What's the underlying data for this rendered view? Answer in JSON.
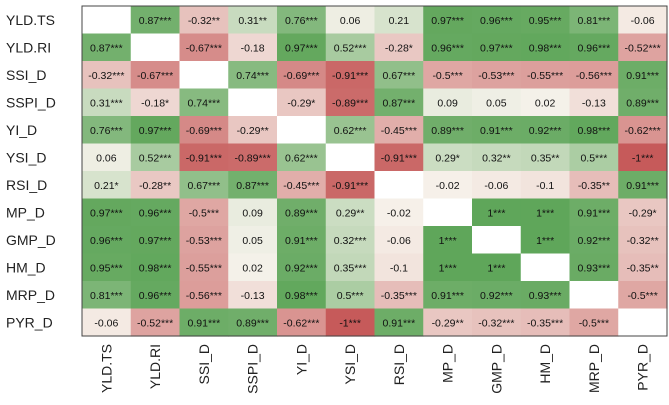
{
  "chart_data": {
    "type": "heatmap",
    "title": "",
    "xlabel": "",
    "ylabel": "",
    "rows": [
      "YLD.TS",
      "YLD.RI",
      "SSI_D",
      "SSPI_D",
      "YI_D",
      "YSI_D",
      "RSI_D",
      "MP_D",
      "GMP_D",
      "HM_D",
      "MRP_D",
      "PYR_D"
    ],
    "columns": [
      "YLD.TS",
      "YLD.RI",
      "SSI_D",
      "SSPI_D",
      "YI_D",
      "YSI_D",
      "RSI_D",
      "MP_D",
      "GMP_D",
      "HM_D",
      "MRP_D",
      "PYR_D"
    ],
    "values": [
      [
        null,
        0.87,
        -0.32,
        0.31,
        0.76,
        0.06,
        0.21,
        0.97,
        0.96,
        0.95,
        0.81,
        -0.06
      ],
      [
        0.87,
        null,
        -0.67,
        -0.18,
        0.97,
        0.52,
        -0.28,
        0.96,
        0.97,
        0.98,
        0.96,
        -0.52
      ],
      [
        -0.32,
        -0.67,
        null,
        0.74,
        -0.69,
        -0.91,
        0.67,
        -0.5,
        -0.53,
        -0.55,
        -0.56,
        0.91
      ],
      [
        0.31,
        -0.18,
        0.74,
        null,
        -0.29,
        -0.89,
        0.87,
        0.09,
        0.05,
        0.02,
        -0.13,
        0.89
      ],
      [
        0.76,
        0.97,
        -0.69,
        -0.29,
        null,
        0.62,
        -0.45,
        0.89,
        0.91,
        0.92,
        0.98,
        -0.62
      ],
      [
        0.06,
        0.52,
        -0.91,
        -0.89,
        0.62,
        null,
        -0.91,
        0.29,
        0.32,
        0.35,
        0.5,
        -1
      ],
      [
        0.21,
        -0.28,
        0.67,
        0.87,
        -0.45,
        -0.91,
        null,
        -0.02,
        -0.06,
        -0.1,
        -0.35,
        0.91
      ],
      [
        0.97,
        0.96,
        -0.5,
        0.09,
        0.89,
        0.29,
        -0.02,
        null,
        1,
        1,
        0.91,
        -0.29
      ],
      [
        0.96,
        0.97,
        -0.53,
        0.05,
        0.91,
        0.32,
        -0.06,
        1,
        null,
        1,
        0.92,
        -0.32
      ],
      [
        0.95,
        0.98,
        -0.55,
        0.02,
        0.92,
        0.35,
        -0.1,
        1,
        1,
        null,
        0.93,
        -0.35
      ],
      [
        0.81,
        0.96,
        -0.56,
        -0.13,
        0.98,
        0.5,
        -0.35,
        0.91,
        0.92,
        0.93,
        null,
        -0.5
      ],
      [
        -0.06,
        -0.52,
        0.91,
        0.89,
        -0.62,
        -1,
        0.91,
        -0.29,
        -0.32,
        -0.35,
        -0.5,
        null
      ]
    ],
    "labels": [
      [
        "",
        "0.87***",
        "-0.32**",
        "0.31**",
        "0.76***",
        "0.06",
        "0.21",
        "0.97***",
        "0.96***",
        "0.95***",
        "0.81***",
        "-0.06"
      ],
      [
        "0.87***",
        "",
        "-0.67***",
        "-0.18",
        "0.97***",
        "0.52***",
        "-0.28*",
        "0.96***",
        "0.97***",
        "0.98***",
        "0.96***",
        "-0.52***"
      ],
      [
        "-0.32***",
        "-0.67***",
        "",
        "0.74***",
        "-0.69***",
        "-0.91***",
        "0.67***",
        "-0.5***",
        "-0.53***",
        "-0.55***",
        "-0.56***",
        "0.91***"
      ],
      [
        "0.31***",
        "-0.18*",
        "0.74***",
        "",
        "-0.29*",
        "-0.89***",
        "0.87***",
        "0.09",
        "0.05",
        "0.02",
        "-0.13",
        "0.89***"
      ],
      [
        "0.76***",
        "0.97***",
        "-0.69***",
        "-0.29**",
        "",
        "0.62***",
        "-0.45***",
        "0.89***",
        "0.91***",
        "0.92***",
        "0.98***",
        "-0.62***"
      ],
      [
        "0.06",
        "0.52***",
        "-0.91***",
        "-0.89***",
        "0.62***",
        "",
        "-0.91***",
        "0.29*",
        "0.32**",
        "0.35**",
        "0.5***",
        "-1***"
      ],
      [
        "0.21*",
        "-0.28**",
        "0.67***",
        "0.87***",
        "-0.45***",
        "-0.91***",
        "",
        "-0.02",
        "-0.06",
        "-0.1",
        "-0.35**",
        "0.91***"
      ],
      [
        "0.97***",
        "0.96***",
        "-0.5***",
        "0.09",
        "0.89***",
        "0.29**",
        "-0.02",
        "",
        "1***",
        "1***",
        "0.91***",
        "-0.29*"
      ],
      [
        "0.96***",
        "0.97***",
        "-0.53***",
        "0.05",
        "0.91***",
        "0.32***",
        "-0.06",
        "1***",
        "",
        "1***",
        "0.92***",
        "-0.32**"
      ],
      [
        "0.95***",
        "0.98***",
        "-0.55***",
        "0.02",
        "0.92***",
        "0.35***",
        "-0.1",
        "1***",
        "1***",
        "",
        "0.93***",
        "-0.35**"
      ],
      [
        "0.81***",
        "0.96***",
        "-0.56***",
        "-0.13",
        "0.98***",
        "0.5***",
        "-0.35***",
        "0.91***",
        "0.92***",
        "0.93***",
        "",
        "-0.5***"
      ],
      [
        "-0.06",
        "-0.52***",
        "0.91***",
        "0.89***",
        "-0.62***",
        "-1***",
        "0.91***",
        "-0.29**",
        "-0.32***",
        "-0.35***",
        "-0.5***",
        ""
      ]
    ],
    "colors": {
      "positive": "#5fa65a",
      "negative": "#c65a5a",
      "neutral": "#f7f3ec",
      "diagonal": "#ffffff"
    },
    "value_range": [
      -1,
      1
    ],
    "grid": false,
    "legend": "none"
  }
}
